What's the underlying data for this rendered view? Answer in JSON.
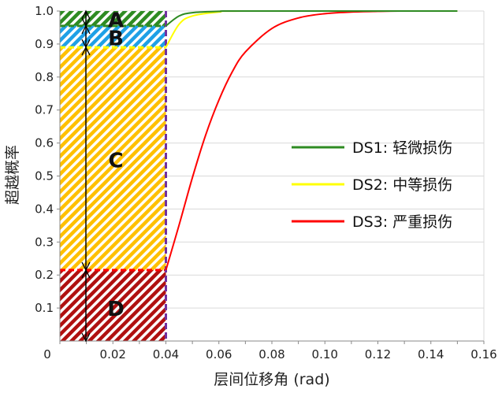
{
  "chart_data": {
    "type": "line",
    "xlabel": "层间位移角 (rad)",
    "ylabel": "超越概率",
    "xlim": [
      0,
      0.16
    ],
    "ylim": [
      0,
      1.0
    ],
    "xticks": [
      "0",
      "0.02",
      "0.04",
      "0.06",
      "0.08",
      "0.10",
      "0.12",
      "0.14",
      "0.16"
    ],
    "xtick_values": [
      0,
      0.02,
      0.04,
      0.06,
      0.08,
      0.1,
      0.12,
      0.14,
      0.16
    ],
    "yticks": [
      "0.1",
      "0.2",
      "0.3",
      "0.4",
      "0.5",
      "0.6",
      "0.7",
      "0.8",
      "0.9",
      "1.0"
    ],
    "ytick_values": [
      0.1,
      0.2,
      0.3,
      0.4,
      0.5,
      0.6,
      0.7,
      0.8,
      0.9,
      1.0
    ],
    "grid": "horizontal",
    "legend_position": "right-center",
    "series": [
      {
        "name": "DS1: 轻微损伤",
        "color": "#2e8b22",
        "x": [
          0.04,
          0.045,
          0.05,
          0.06,
          0.07,
          0.15
        ],
        "y": [
          0.955,
          0.985,
          0.995,
          0.999,
          1.0,
          1.0
        ]
      },
      {
        "name": "DS2: 中等损伤",
        "color": "#ffff00",
        "x": [
          0.04,
          0.045,
          0.05,
          0.06,
          0.07,
          0.15
        ],
        "y": [
          0.89,
          0.96,
          0.985,
          0.997,
          1.0,
          1.0
        ]
      },
      {
        "name": "DS3: 严重损伤",
        "color": "#ff0000",
        "x": [
          0.04,
          0.045,
          0.05,
          0.055,
          0.06,
          0.065,
          0.07,
          0.08,
          0.09,
          0.1,
          0.11,
          0.12,
          0.13,
          0.15
        ],
        "y": [
          0.215,
          0.352,
          0.495,
          0.624,
          0.73,
          0.815,
          0.876,
          0.947,
          0.979,
          0.992,
          0.997,
          0.999,
          1.0,
          1.0
        ]
      }
    ],
    "reference_drift": 0.04,
    "regions": [
      {
        "label": "A",
        "from": 0.955,
        "to": 1.0,
        "color": "#2e8b22"
      },
      {
        "label": "B",
        "from": 0.89,
        "to": 0.955,
        "color": "#1ea0e6"
      },
      {
        "label": "C",
        "from": 0.215,
        "to": 0.89,
        "color": "#ffc000"
      },
      {
        "label": "D",
        "from": 0.0,
        "to": 0.215,
        "color": "#b01010"
      }
    ],
    "reference_line_color": "#7030a0"
  }
}
